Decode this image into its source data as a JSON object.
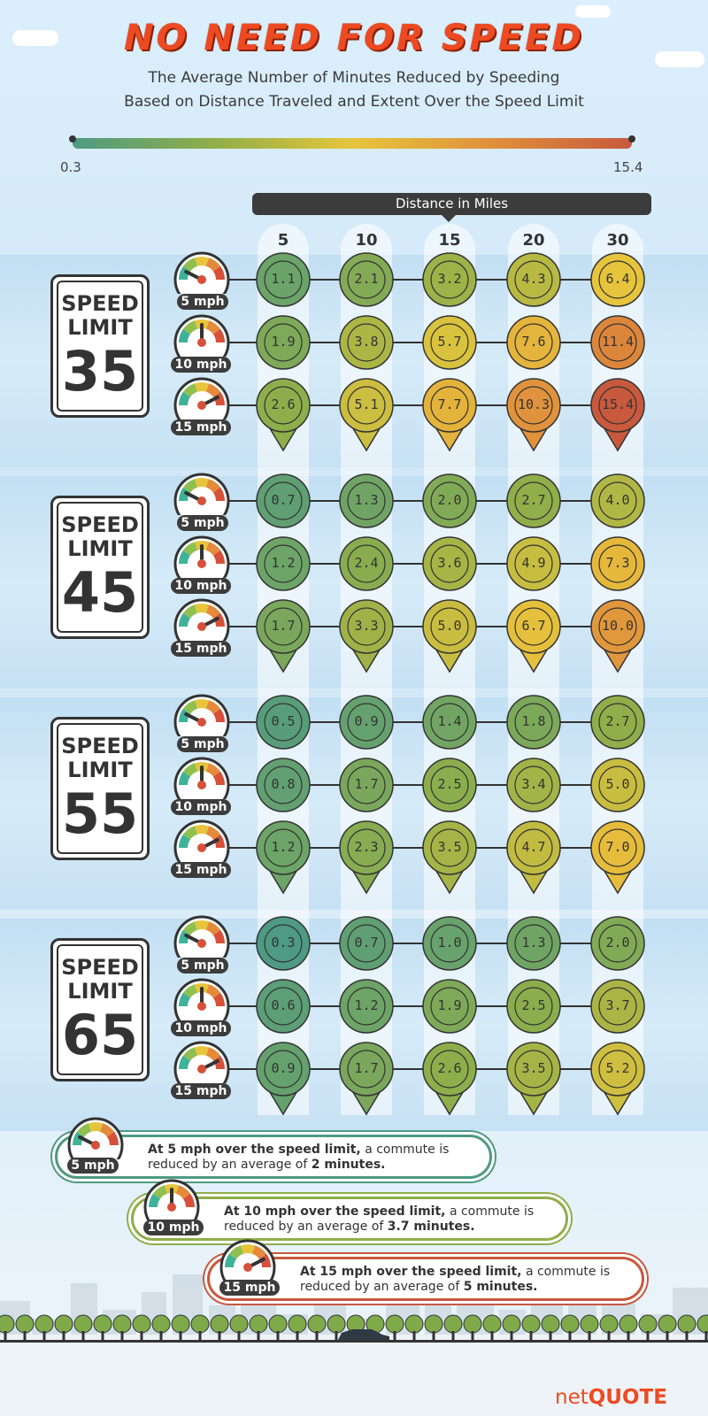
{
  "title": "NO NEED FOR SPEED",
  "subtitle_line1": "The Average Number of Minutes Reduced by Speeding",
  "subtitle_line2": "Based on Distance Traveled and Extent Over the Speed Limit",
  "legend": {
    "min": "0.3",
    "max": "15.4",
    "colors": [
      "#4e9a82",
      "#8fae4a",
      "#e6c53c",
      "#e0903c",
      "#c8593d"
    ]
  },
  "distance_header": "Distance in Miles",
  "chart_data": {
    "type": "heatmap",
    "x_label": "Distance in Miles",
    "x": [
      "5",
      "10",
      "15",
      "20",
      "30"
    ],
    "row_labels": [
      "5 mph",
      "10 mph",
      "15 mph"
    ],
    "color_range": [
      0.3,
      15.4
    ],
    "groups": [
      {
        "label": "SPEED LIMIT 35",
        "sign_top": "SPEED",
        "sign_mid": "LIMIT",
        "limit": "35",
        "rows": [
          [
            1.1,
            2.1,
            3.2,
            4.3,
            6.4
          ],
          [
            1.9,
            3.8,
            5.7,
            7.6,
            11.4
          ],
          [
            2.6,
            5.1,
            7.7,
            10.3,
            15.4
          ]
        ]
      },
      {
        "label": "SPEED LIMIT 45",
        "sign_top": "SPEED",
        "sign_mid": "LIMIT",
        "limit": "45",
        "rows": [
          [
            0.7,
            1.3,
            2.0,
            2.7,
            4.0
          ],
          [
            1.2,
            2.4,
            3.6,
            4.9,
            7.3
          ],
          [
            1.7,
            3.3,
            5.0,
            6.7,
            10.0
          ]
        ]
      },
      {
        "label": "SPEED LIMIT 55",
        "sign_top": "SPEED",
        "sign_mid": "LIMIT",
        "limit": "55",
        "rows": [
          [
            0.5,
            0.9,
            1.4,
            1.8,
            2.7
          ],
          [
            0.8,
            1.7,
            2.5,
            3.4,
            5.0
          ],
          [
            1.2,
            2.3,
            3.5,
            4.7,
            7.0
          ]
        ]
      },
      {
        "label": "SPEED LIMIT 65",
        "sign_top": "SPEED",
        "sign_mid": "LIMIT",
        "limit": "65",
        "rows": [
          [
            0.3,
            0.7,
            1.0,
            1.3,
            2.0
          ],
          [
            0.6,
            1.2,
            1.9,
            2.5,
            3.7
          ],
          [
            0.9,
            1.7,
            2.6,
            3.5,
            5.2
          ]
        ]
      }
    ]
  },
  "callouts": [
    {
      "badge": "5 mph",
      "bold": "At 5 mph over the speed limit,",
      "text1": " a commute is",
      "text2a": "reduced by an average of ",
      "text2b": "2 minutes.",
      "color": "#4e9a82"
    },
    {
      "badge": "10 mph",
      "bold": "At 10 mph over the speed limit,",
      "text1": " a commute is",
      "text2a": "reduced by an average of ",
      "text2b": "3.7 minutes.",
      "color": "#8fae4a"
    },
    {
      "badge": "15 mph",
      "bold": "At 15 mph over the speed limit,",
      "text1": " a commute is",
      "text2a": "reduced by an average of ",
      "text2b": "5 minutes.",
      "color": "#c8593d"
    }
  ],
  "logo": {
    "part1": "net",
    "part2": "QUOTE"
  }
}
